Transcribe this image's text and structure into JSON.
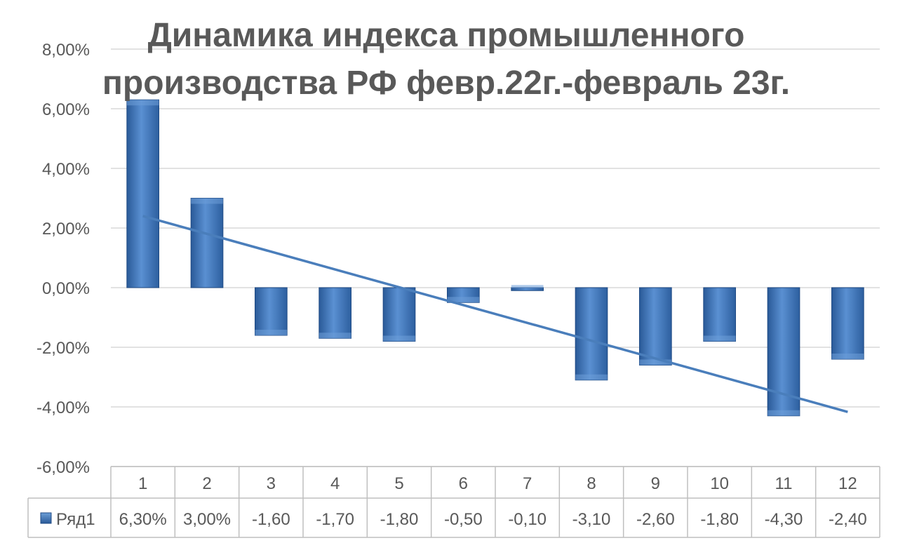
{
  "chart_data": {
    "type": "bar",
    "title_lines": [
      "Динамика  индекса промышленного",
      "производства РФ февр.22г.-февраль 23г."
    ],
    "categories": [
      "1",
      "2",
      "3",
      "4",
      "5",
      "6",
      "7",
      "8",
      "9",
      "10",
      "11",
      "12"
    ],
    "series": [
      {
        "name": "Ряд1",
        "values": [
          6.3,
          3.0,
          -1.6,
          -1.7,
          -1.8,
          -0.5,
          -0.1,
          -3.1,
          -2.6,
          -1.8,
          -4.3,
          -2.4
        ],
        "table_labels": [
          "6,30%",
          "3,00%",
          "-1,60",
          "-1,70",
          "-1,80",
          "-0,50",
          "-0,10",
          "-3,10",
          "-2,60",
          "-1,80",
          "-4,30",
          "-2,40"
        ]
      }
    ],
    "y_ticks": [
      "8,00%",
      "6,00%",
      "4,00%",
      "2,00%",
      "0,00%",
      "-2,00%",
      "-4,00%",
      "-6,00%"
    ],
    "ylim": [
      -6,
      8
    ],
    "y_tick_step": 2,
    "trendline": {
      "type": "linear",
      "color": "#4a7ebb"
    },
    "grid": true,
    "legend": "data-table",
    "colors": {
      "bar_main": "#3a70b4",
      "bar_light": "#6d9fd8",
      "bar_dark": "#1f4a84",
      "grid": "#d9d9d9",
      "axis_text": "#595959",
      "title": "#595959",
      "table_border": "#bfbfbf"
    }
  }
}
